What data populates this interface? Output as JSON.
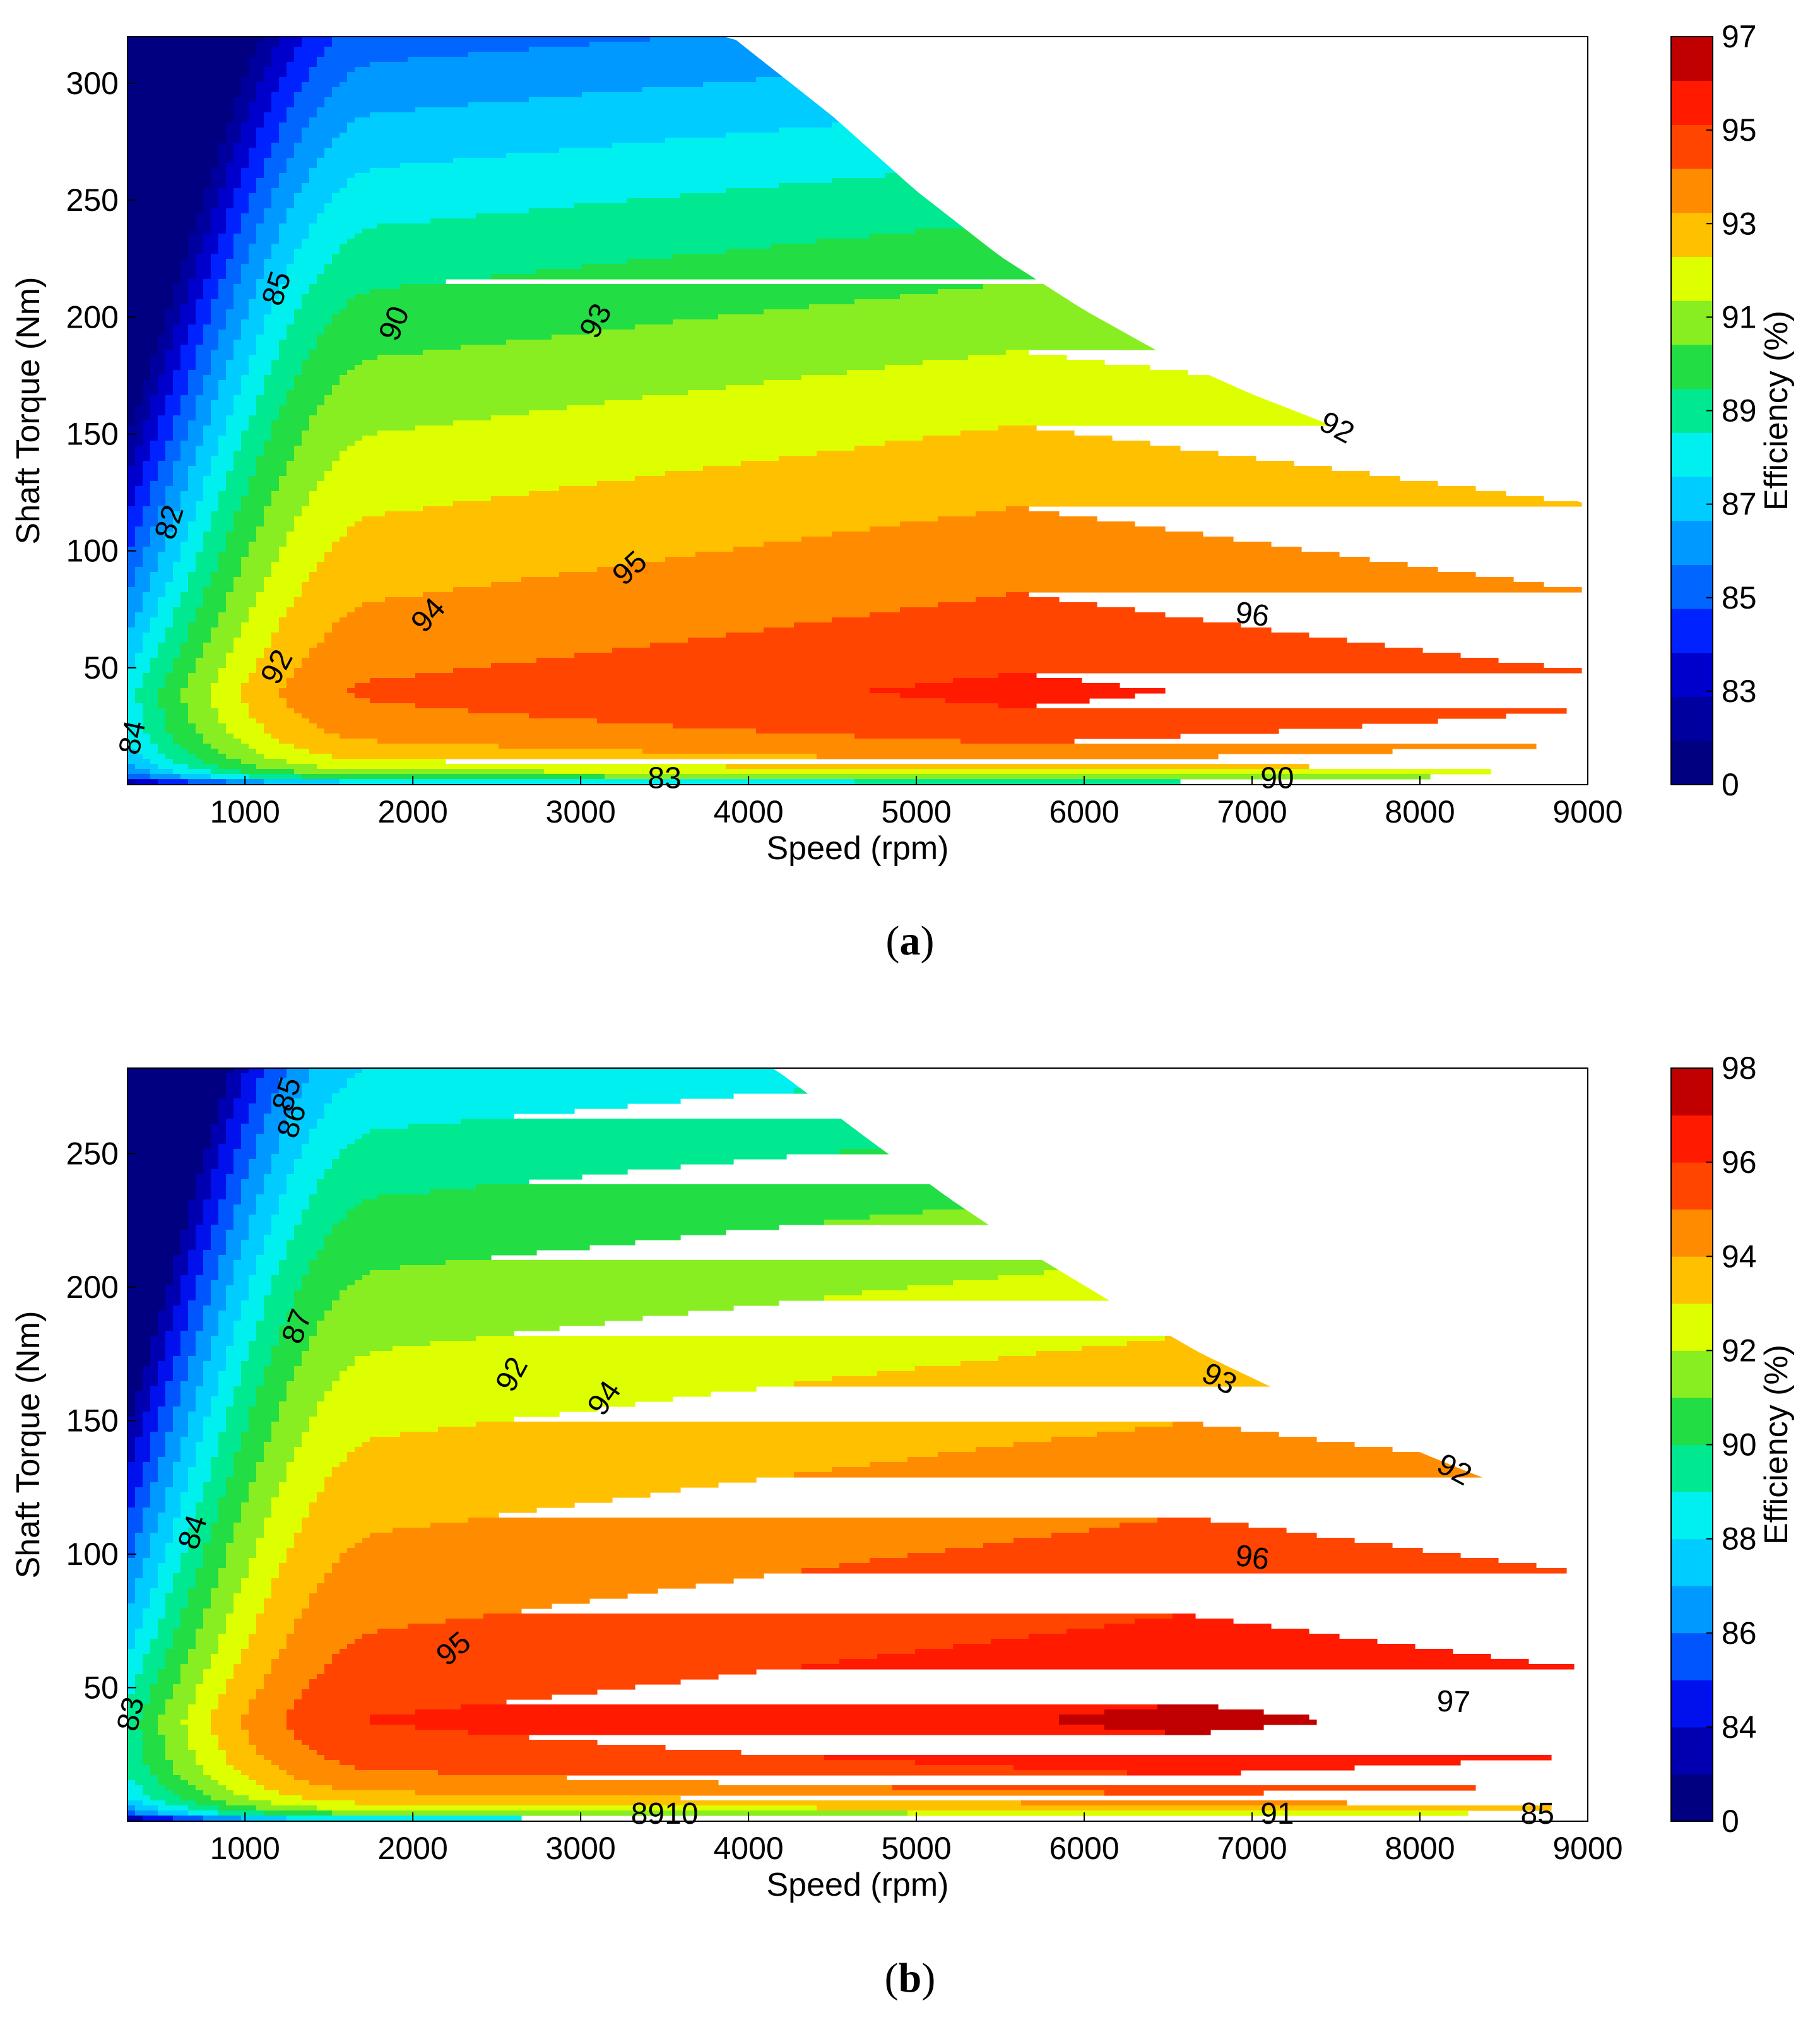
{
  "chart_data": [
    {
      "type": "heatmap",
      "panel_label": {
        "open": "(",
        "letter": "a",
        "close": ")"
      },
      "xlabel": "Speed  (rpm)",
      "ylabel": "Shaft Torque  (Nm)",
      "xlim": [
        300,
        9000
      ],
      "ylim": [
        0,
        320
      ],
      "xticks": [
        1000,
        2000,
        3000,
        4000,
        5000,
        6000,
        7000,
        8000,
        9000
      ],
      "yticks": [
        50,
        100,
        150,
        200,
        250,
        300
      ],
      "envelope": {
        "speed": [
          300,
          3900,
          4500,
          5000,
          5500,
          6000,
          6500,
          7000,
          7500,
          8000,
          8500,
          9000
        ],
        "torque": [
          320,
          320,
          286,
          254,
          226,
          203,
          183,
          167,
          153,
          141,
          130,
          120
        ]
      },
      "colorbar": {
        "label": "Efficiency (%)",
        "ticks": [
          "0",
          "83",
          "85",
          "87",
          "89",
          "91",
          "93",
          "95",
          "97"
        ],
        "levels": [
          0,
          82,
          83,
          84,
          85,
          86,
          87,
          88,
          89,
          90,
          91,
          92,
          93,
          94,
          95,
          96,
          97
        ],
        "colors": [
          "#000080",
          "#00009e",
          "#0000cc",
          "#0022ff",
          "#0066ff",
          "#0099ff",
          "#00ccff",
          "#00f0f0",
          "#00e890",
          "#22dd44",
          "#88ee22",
          "#ddff00",
          "#ffc000",
          "#ff8c00",
          "#ff4500",
          "#ff1a00",
          "#c00000"
        ]
      },
      "contour_labels": [
        {
          "text": "85",
          "speed": 1200,
          "torque": 212,
          "angle": -72
        },
        {
          "text": "90",
          "speed": 1900,
          "torque": 197,
          "angle": -68
        },
        {
          "text": "93",
          "speed": 3100,
          "torque": 198,
          "angle": -62
        },
        {
          "text": "92",
          "speed": 7500,
          "torque": 152,
          "angle": 28
        },
        {
          "text": "82",
          "speed": 560,
          "torque": 112,
          "angle": -72
        },
        {
          "text": "95",
          "speed": 3300,
          "torque": 92,
          "angle": -42
        },
        {
          "text": "94",
          "speed": 2100,
          "torque": 72,
          "angle": -48
        },
        {
          "text": "96",
          "speed": 7000,
          "torque": 72,
          "angle": 8
        },
        {
          "text": "92",
          "speed": 1200,
          "torque": 50,
          "angle": -62
        },
        {
          "text": "84",
          "speed": 340,
          "torque": 20,
          "angle": -78
        },
        {
          "text": "83",
          "speed": 3500,
          "torque": 2,
          "angle": 0
        },
        {
          "text": "90",
          "speed": 7150,
          "torque": 2,
          "angle": 0
        }
      ]
    },
    {
      "type": "heatmap",
      "panel_label": {
        "open": "(",
        "letter": "b",
        "close": ")"
      },
      "xlabel": "Speed  (rpm)",
      "ylabel": "Shaft Torque  (Nm)",
      "xlim": [
        300,
        9000
      ],
      "ylim": [
        0,
        282
      ],
      "xticks": [
        1000,
        2000,
        3000,
        4000,
        5000,
        6000,
        7000,
        8000,
        9000
      ],
      "yticks": [
        50,
        100,
        150,
        200,
        250
      ],
      "envelope": {
        "speed": [
          300,
          4150,
          4700,
          5200,
          5700,
          6200,
          6700,
          7200,
          7700,
          8200,
          8600,
          9000
        ],
        "torque": [
          282,
          282,
          256,
          233,
          212,
          193,
          175,
          160,
          146,
          133,
          123,
          113
        ]
      },
      "colorbar": {
        "label": "Efficiency (%)",
        "ticks": [
          "0",
          "84",
          "86",
          "88",
          "90",
          "92",
          "94",
          "96",
          "98"
        ],
        "levels": [
          0,
          83,
          84,
          85,
          86,
          87,
          88,
          89,
          90,
          91,
          92,
          93,
          94,
          95,
          96,
          97
        ],
        "colors": [
          "#000080",
          "#0000b0",
          "#0011ee",
          "#0055ff",
          "#0099ff",
          "#00ccff",
          "#00f0f0",
          "#00e890",
          "#22dd44",
          "#88ee22",
          "#ddff00",
          "#ffc000",
          "#ff8c00",
          "#ff4500",
          "#ff1a00",
          "#c00000"
        ]
      },
      "contour_labels": [
        {
          "text": "85",
          "speed": 1260,
          "torque": 272,
          "angle": -72
        },
        {
          "text": "86",
          "speed": 1290,
          "torque": 262,
          "angle": -72
        },
        {
          "text": "87",
          "speed": 1320,
          "torque": 185,
          "angle": -70
        },
        {
          "text": "92",
          "speed": 2600,
          "torque": 167,
          "angle": -62
        },
        {
          "text": "94",
          "speed": 3150,
          "torque": 158,
          "angle": -55
        },
        {
          "text": "93",
          "speed": 6800,
          "torque": 165,
          "angle": 28
        },
        {
          "text": "92",
          "speed": 8200,
          "torque": 131,
          "angle": 28
        },
        {
          "text": "84",
          "speed": 700,
          "torque": 108,
          "angle": -72
        },
        {
          "text": "96",
          "speed": 7000,
          "torque": 98,
          "angle": 8
        },
        {
          "text": "95",
          "speed": 2250,
          "torque": 64,
          "angle": -40
        },
        {
          "text": "97",
          "speed": 8200,
          "torque": 44,
          "angle": 2
        },
        {
          "text": "83",
          "speed": 330,
          "torque": 40,
          "angle": -78
        },
        {
          "text": "8910",
          "speed": 3500,
          "torque": 2,
          "angle": 0
        },
        {
          "text": "91",
          "speed": 7150,
          "torque": 2,
          "angle": 0
        },
        {
          "text": "85",
          "speed": 8700,
          "torque": 2,
          "angle": 0
        }
      ]
    }
  ]
}
